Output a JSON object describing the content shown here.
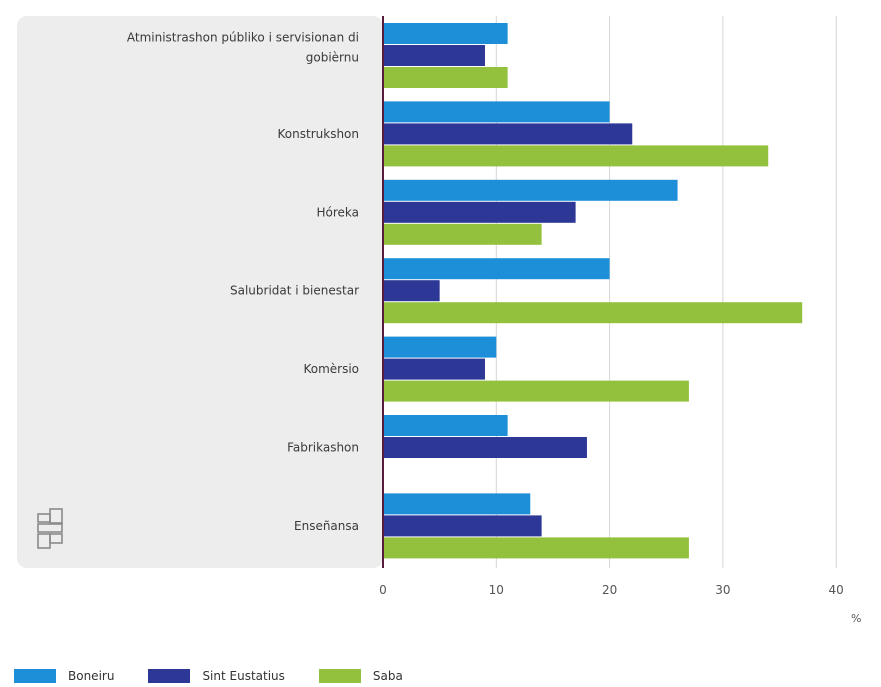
{
  "chart_data": {
    "type": "bar",
    "orientation": "horizontal",
    "categories": [
      [
        "Atministrashon públiko i servisionan di",
        "gobièrnu"
      ],
      [
        "Konstrukshon"
      ],
      [
        "Hóreka"
      ],
      [
        "Salubridat i bienestar"
      ],
      [
        "Komèrsio"
      ],
      [
        "Fabrikashon"
      ],
      [
        "Enseñansa"
      ]
    ],
    "series": [
      {
        "name": "Boneiru",
        "color": "#1d8fd8",
        "values": [
          11,
          20,
          26,
          20,
          10,
          11,
          13
        ]
      },
      {
        "name": "Sint Eustatius",
        "color": "#2c3796",
        "values": [
          9,
          22,
          17,
          5,
          9,
          18,
          14
        ]
      },
      {
        "name": "Saba",
        "color": "#93c13d",
        "values": [
          11,
          34,
          14,
          37,
          27,
          0,
          27
        ]
      }
    ],
    "xlim": [
      0,
      40
    ],
    "xticks": [
      0,
      10,
      20,
      30,
      40
    ],
    "unit": "%",
    "grid": true,
    "legend_position": "bottom-left",
    "logo": "cbs-logo"
  }
}
